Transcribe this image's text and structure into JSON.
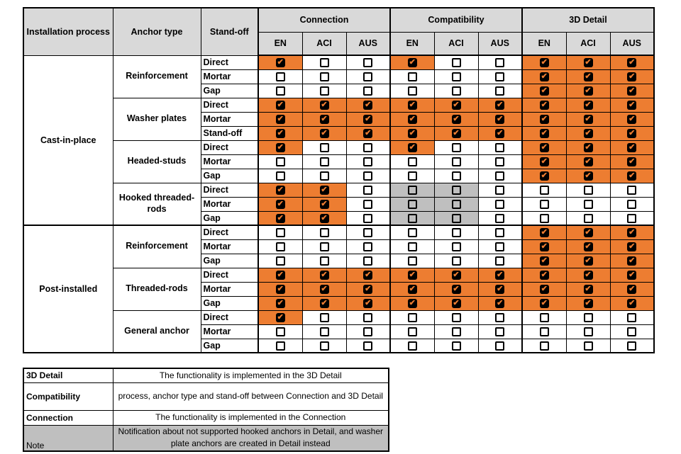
{
  "colors": {
    "checked_cell_bg": "#ED7D31",
    "gray_cell_bg": "#BFBFBF",
    "header_bg": "#D9D9D9",
    "border": "#000000",
    "checkmark": "#ED7D31"
  },
  "icons": {
    "checked_checkbox": "✔"
  },
  "table": {
    "headers": {
      "installation_process": "Installation process",
      "anchor_type": "Anchor type",
      "stand_off": "Stand-off",
      "groups": [
        "Connection",
        "Compatibility",
        "3D Detail"
      ],
      "subcolumns": [
        "EN",
        "ACI",
        "AUS"
      ]
    },
    "cell_code_legend": {
      "C": "checked-orange",
      ".": "unchecked-white",
      "G": "unchecked-gray"
    },
    "sections": [
      {
        "process": "Cast-in-place",
        "anchors": [
          {
            "type": "Reinforcement",
            "rows": [
              {
                "standoff": "Direct",
                "cells": "C..C..CCC"
              },
              {
                "standoff": "Mortar",
                "cells": "......CCC"
              },
              {
                "standoff": "Gap",
                "cells": "......CCC"
              }
            ]
          },
          {
            "type": "Washer plates",
            "rows": [
              {
                "standoff": "Direct",
                "cells": "CCCCCCCCC"
              },
              {
                "standoff": "Mortar",
                "cells": "CCCCCCCCC"
              },
              {
                "standoff": "Stand-off",
                "cells": "CCCCCCCCC"
              }
            ]
          },
          {
            "type": "Headed-studs",
            "rows": [
              {
                "standoff": "Direct",
                "cells": "C..C..CCC"
              },
              {
                "standoff": "Mortar",
                "cells": "......CCC"
              },
              {
                "standoff": "Gap",
                "cells": "......CCC"
              }
            ]
          },
          {
            "type": "Hooked threaded-rods",
            "rows": [
              {
                "standoff": "Direct",
                "cells": "CC.GG...."
              },
              {
                "standoff": "Mortar",
                "cells": "CC.GG...."
              },
              {
                "standoff": "Gap",
                "cells": "CC.GG...."
              }
            ]
          }
        ]
      },
      {
        "process": "Post-installed",
        "anchors": [
          {
            "type": "Reinforcement",
            "rows": [
              {
                "standoff": "Direct",
                "cells": "......CCC"
              },
              {
                "standoff": "Mortar",
                "cells": "......CCC"
              },
              {
                "standoff": "Gap",
                "cells": "......CCC"
              }
            ]
          },
          {
            "type": "Threaded-rods",
            "rows": [
              {
                "standoff": "Direct",
                "cells": "CCCCCCCCC"
              },
              {
                "standoff": "Mortar",
                "cells": "CCCCCCCCC"
              },
              {
                "standoff": "Gap",
                "cells": "CCCCCCCCC"
              }
            ]
          },
          {
            "type": "General anchor",
            "rows": [
              {
                "standoff": "Direct",
                "cells": "C........"
              },
              {
                "standoff": "Mortar",
                "cells": "........."
              },
              {
                "standoff": "Gap",
                "cells": "........."
              }
            ]
          }
        ]
      }
    ]
  },
  "legend": {
    "rows": [
      {
        "term": "3D Detail",
        "description": "The functionality is implemented in the 3D Detail",
        "bold": true,
        "gray": false
      },
      {
        "term": "Compatibility",
        "description": "process, anchor type and stand-off between Connection and 3D Detail",
        "bold": true,
        "gray": false
      },
      {
        "term": "Connection",
        "description": "The functionality is implemented in the Connection",
        "bold": true,
        "gray": false
      },
      {
        "term": "Note",
        "description": "Notification about not supported hooked anchors in Detail, and washer plate anchors are created in Detail instead",
        "bold": false,
        "gray": true
      }
    ]
  }
}
